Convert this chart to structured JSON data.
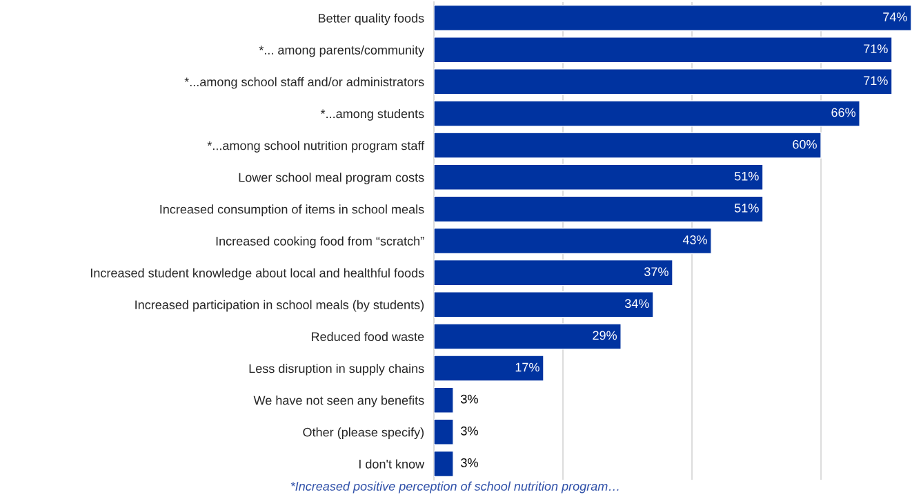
{
  "chart_data": {
    "type": "bar",
    "orientation": "horizontal",
    "categories": [
      "Better quality foods",
      "*... among parents/community",
      "*...among school staff and/or administrators",
      "*...among students",
      "*...among school nutrition program staff",
      "Lower school meal program costs",
      "Increased consumption of items in school meals",
      "Increased cooking food from “scratch”",
      "Increased student knowledge about local and healthful foods",
      "Increased participation in school meals (by students)",
      "Reduced food waste",
      "Less disruption in supply chains",
      "We have not seen any benefits",
      "Other (please specify)",
      "I don't know"
    ],
    "values": [
      74,
      71,
      71,
      66,
      60,
      51,
      51,
      43,
      37,
      34,
      29,
      17,
      3,
      3,
      3
    ],
    "value_labels": [
      "74%",
      "71%",
      "71%",
      "66%",
      "60%",
      "51%",
      "51%",
      "43%",
      "37%",
      "34%",
      "29%",
      "17%",
      "3%",
      "3%",
      "3%"
    ],
    "color": "#0033a0",
    "xlim": [
      0,
      74
    ],
    "xticks": [
      {
        "value": 0,
        "label": null
      },
      {
        "value": 20,
        "label": null
      },
      {
        "value": 40,
        "label": null
      },
      {
        "value": 60,
        "label": null
      }
    ],
    "grid": "x",
    "tick_labels": "y",
    "annotations": [
      "*Increased positive perception of school nutrition program…"
    ]
  }
}
